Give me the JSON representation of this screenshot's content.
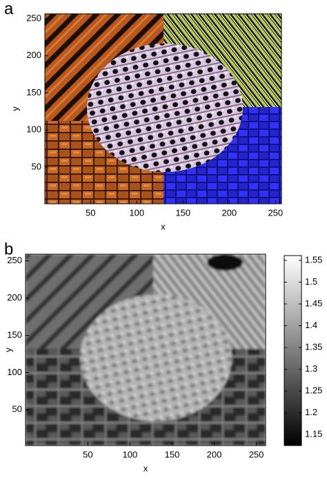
{
  "chart_data": [
    {
      "type": "image",
      "panel_label": "a",
      "xlabel": "x",
      "ylabel": "y",
      "xlim": [
        0.5,
        256.5
      ],
      "ylim": [
        0.5,
        256.5
      ],
      "xticks": [
        50,
        100,
        150,
        200,
        250
      ],
      "yticks": [
        50,
        100,
        150,
        200,
        250
      ]
    },
    {
      "type": "image",
      "panel_label": "b",
      "xlabel": "x",
      "ylabel": "y",
      "xlim": [
        -24,
        261
      ],
      "ylim": [
        2,
        259
      ],
      "xticks": [
        50,
        100,
        150,
        200,
        250
      ],
      "yticks": [
        50,
        100,
        150,
        200,
        250
      ],
      "colormap": "gray",
      "clim": [
        1.125,
        1.561
      ],
      "cticks": [
        1.15,
        1.2,
        1.25,
        1.3,
        1.35,
        1.4,
        1.45,
        1.5,
        1.55
      ]
    }
  ]
}
